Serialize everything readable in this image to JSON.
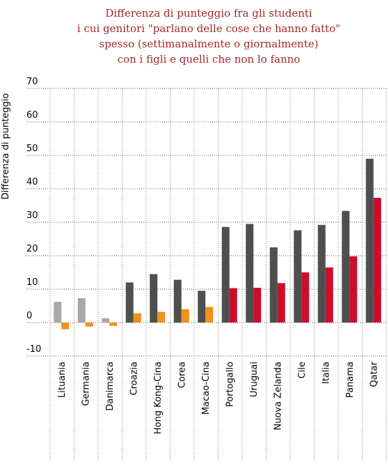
{
  "chart_data": {
    "type": "bar",
    "title": [
      "Differenza di punteggio fra gli studenti",
      "i cui genitori \"parlano delle cose che hanno fatto\"",
      "spesso (settimanalmente o giornalmente)",
      "con i figli e quelli che non lo fanno"
    ],
    "y_label": "Differenza di punteggio",
    "categories": [
      "Lituania",
      "Germania",
      "Danimarca",
      "Croazia",
      "Hong Kong-Cina",
      "Corea",
      "Macao-Cina",
      "Portogallo",
      "Uruguai",
      "Nuova Zelanda",
      "Cile",
      "Italia",
      "Panama",
      "Qatar"
    ],
    "category_colors": [
      "#1f7b7b",
      "#000000",
      "#000000",
      "#1f7b7b",
      "#1f7b7b",
      "#000000",
      "#1f7b7b",
      "#000000",
      "#000000",
      "#000000",
      "#000000",
      "#000000",
      "#1f7b7b",
      "#1f7b7b"
    ],
    "series": [
      {
        "values": [
          6.2,
          7.3,
          1.3,
          12.0,
          14.5,
          12.8,
          9.5,
          28.6,
          29.5,
          22.5,
          27.6,
          29.2,
          33.4,
          49.0
        ],
        "colors": [
          "#a8a8a8",
          "#a8a8a8",
          "#a8a8a8",
          "#4f4f4f",
          "#4f4f4f",
          "#4f4f4f",
          "#4f4f4f",
          "#4f4f4f",
          "#4f4f4f",
          "#4f4f4f",
          "#4f4f4f",
          "#4f4f4f",
          "#4f4f4f",
          "#4f4f4f"
        ]
      },
      {
        "values": [
          -2.0,
          -1.2,
          -1.0,
          2.8,
          3.2,
          4.0,
          4.7,
          10.3,
          10.4,
          11.8,
          15.0,
          16.5,
          19.8,
          37.3
        ],
        "colors": [
          "#f0921c",
          "#f0921c",
          "#f0921c",
          "#f0921c",
          "#f0921c",
          "#f0921c",
          "#f0921c",
          "#c8102e",
          "#c8102e",
          "#c8102e",
          "#c8102e",
          "#c8102e",
          "#c8102e",
          "#c8102e"
        ]
      }
    ],
    "ylim": [
      -10,
      70
    ],
    "yticks": [
      -10,
      0,
      10,
      20,
      30,
      40,
      50,
      60,
      70
    ],
    "grid": true
  }
}
